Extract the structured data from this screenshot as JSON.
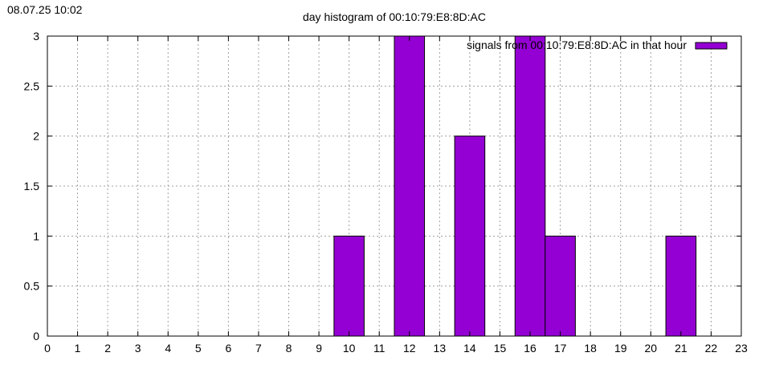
{
  "timestamp": "08.07.25 10:02",
  "chart_data": {
    "type": "bar",
    "title": "day histogram of 00:10:79:E8:8D:AC",
    "xlabel": "",
    "ylabel": "",
    "xlim": [
      0,
      23
    ],
    "ylim": [
      0,
      3
    ],
    "x_ticks": [
      "0",
      "1",
      "2",
      "3",
      "4",
      "5",
      "6",
      "7",
      "8",
      "9",
      "10",
      "11",
      "12",
      "13",
      "14",
      "15",
      "16",
      "17",
      "18",
      "19",
      "20",
      "21",
      "22",
      "23"
    ],
    "y_ticks": [
      "0",
      "0.5",
      "1",
      "1.5",
      "2",
      "2.5",
      "3"
    ],
    "grid": true,
    "legend_position": "top-right",
    "bar_color": "#9400d3",
    "series": [
      {
        "name": "signals from 00:10:79:E8:8D:AC in that hour",
        "bars": [
          {
            "label": "10",
            "x": 10,
            "value": 1
          },
          {
            "label": "12",
            "x": 12,
            "value": 3
          },
          {
            "label": "14",
            "x": 14,
            "value": 2
          },
          {
            "label": "16",
            "x": 16,
            "value": 3
          },
          {
            "label": "17",
            "x": 17,
            "value": 1
          },
          {
            "label": "21",
            "x": 21,
            "value": 1
          }
        ]
      }
    ]
  }
}
